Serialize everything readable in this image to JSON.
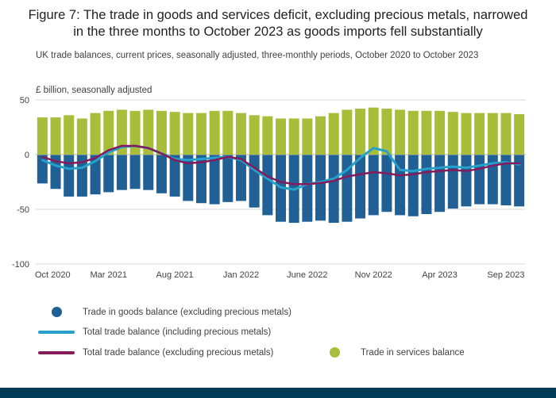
{
  "page": {
    "footer_color": "#003c57"
  },
  "chart_data": {
    "type": "bar",
    "overlay_type": "line",
    "subtype": "stacked-bars-with-line-overlay",
    "title": "Figure 7: The trade in goods and services deficit, excluding precious metals, narrowed in the three months to October 2023 as goods imports fell substantially",
    "subtitle": "UK trade balances, current prices, seasonally adjusted, three-monthly periods, October 2020 to October 2023",
    "unit_label": "£ billion, seasonally adjusted",
    "ylim": [
      -100,
      50
    ],
    "yticks": [
      50,
      0,
      -50,
      -100
    ],
    "grid": true,
    "legend_position": "bottom",
    "categories": [
      "Oct 2020",
      "Nov 2020",
      "Dec 2020",
      "Jan 2021",
      "Feb 2021",
      "Mar 2021",
      "Apr 2021",
      "May 2021",
      "Jun 2021",
      "Jul 2021",
      "Aug 2021",
      "Sep 2021",
      "Oct 2021",
      "Nov 2021",
      "Dec 2021",
      "Jan 2022",
      "Feb 2022",
      "Mar 2022",
      "Apr 2022",
      "May 2022",
      "Jun 2022",
      "Jul 2022",
      "Aug 2022",
      "Sep 2022",
      "Oct 2022",
      "Nov 2022",
      "Dec 2022",
      "Jan 2023",
      "Feb 2023",
      "Mar 2023",
      "Apr 2023",
      "May 2023",
      "Jun 2023",
      "Jul 2023",
      "Aug 2023",
      "Sep 2023",
      "Oct 2023"
    ],
    "x_ticks": [
      {
        "index": 0,
        "label": "Oct 2020"
      },
      {
        "index": 5,
        "label": "Mar 2021"
      },
      {
        "index": 10,
        "label": "Aug 2021"
      },
      {
        "index": 15,
        "label": "Jan 2022"
      },
      {
        "index": 20,
        "label": "June 2022"
      },
      {
        "index": 25,
        "label": "Nov 2022"
      },
      {
        "index": 30,
        "label": "Apr 2023"
      },
      {
        "index": 35,
        "label": "Sep 2023"
      }
    ],
    "bar_series": [
      {
        "name": "Trade in goods balance (excluding precious metals)",
        "color": "#206095",
        "values": [
          -26,
          -31,
          -38,
          -38,
          -36,
          -34,
          -32,
          -31,
          -32,
          -35,
          -38,
          -42,
          -44,
          -45,
          -43,
          -42,
          -48,
          -55,
          -61,
          -62,
          -61,
          -60,
          -62,
          -61,
          -58,
          -55,
          -52,
          -55,
          -56,
          -54,
          -52,
          -49,
          -47,
          -45,
          -45,
          -46,
          -47
        ]
      },
      {
        "name": "Trade in services balance",
        "color": "#a8bd3a",
        "values": [
          34,
          34,
          36,
          33,
          38,
          40,
          41,
          40,
          41,
          40,
          39,
          38,
          38,
          40,
          40,
          38,
          36,
          35,
          33,
          33,
          33,
          35,
          38,
          41,
          42,
          43,
          42,
          41,
          40,
          40,
          40,
          39,
          38,
          38,
          38,
          38,
          37
        ]
      }
    ],
    "line_series": [
      {
        "name": "Total trade balance (including precious metals)",
        "color": "#27a0cc",
        "values": [
          -5,
          -10,
          -13,
          -12,
          -6,
          2,
          7,
          8,
          6,
          1,
          -4,
          -5,
          -4,
          -3,
          -2,
          -5,
          -14,
          -22,
          -30,
          -32,
          -27,
          -25,
          -22,
          -14,
          -3,
          6,
          3,
          -14,
          -15,
          -13,
          -12,
          -11,
          -12,
          -10,
          -8,
          -7,
          -9
        ]
      },
      {
        "name": "Total trade balance (excluding precious metals)",
        "color": "#871a5b",
        "values": [
          -2,
          -6,
          -8,
          -7,
          -3,
          4,
          8,
          8,
          6,
          1,
          -5,
          -8,
          -7,
          -5,
          -2,
          -4,
          -12,
          -20,
          -25,
          -27,
          -27,
          -26,
          -24,
          -20,
          -18,
          -16,
          -17,
          -19,
          -18,
          -16,
          -15,
          -14,
          -15,
          -13,
          -10,
          -8,
          -8
        ]
      }
    ],
    "legend": [
      {
        "label": "Trade in goods balance (excluding precious metals)",
        "marker": "dot",
        "color": "#206095"
      },
      {
        "label": "Total trade balance (including precious metals)",
        "marker": "line",
        "color": "#27a0cc"
      },
      {
        "label": "Total trade balance (excluding precious metals)",
        "marker": "line",
        "color": "#871a5b"
      },
      {
        "label": "Trade in services balance",
        "marker": "dot",
        "color": "#a8bd3a"
      }
    ],
    "colors": {
      "grid": "#d9d9d9",
      "zero_line": "#b3b3b3",
      "axis_text": "#414042"
    }
  }
}
